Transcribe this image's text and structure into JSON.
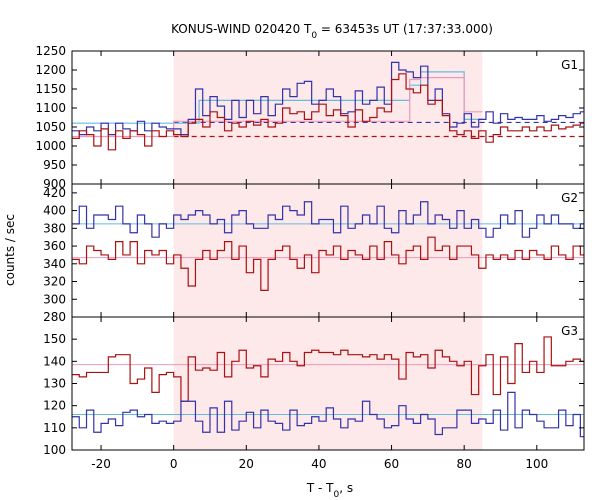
{
  "chart_data": {
    "type": "line",
    "title": "KONUS-WIND 020420 T",
    "title_sub": "0",
    "title_rest": " = 63453s UT (17:37:33.000)",
    "xlabel": "T - T",
    "xlabel_sub": "0",
    "xlabel_rest": ", s",
    "ylabel": "counts / sec",
    "xlim": [
      -28,
      113
    ],
    "xticks": [
      -20,
      0,
      20,
      40,
      60,
      80,
      100
    ],
    "xtick_labels": [
      "-20",
      "0",
      "20",
      "40",
      "60",
      "80",
      "100"
    ],
    "highlight_interval": [
      0,
      85
    ],
    "highlight_color": "#fde8ea",
    "panels": [
      {
        "name": "G1",
        "ylim": [
          900,
          1250
        ],
        "yticks": [
          900,
          950,
          1000,
          1050,
          1100,
          1150,
          1200,
          1250
        ],
        "ytick_labels": [
          "900",
          "950",
          "1000",
          "1050",
          "1100",
          "1150",
          "1200",
          "1250"
        ],
        "bin_start": -28,
        "bin_width": 2,
        "series": [
          {
            "color": "#3333aa",
            "values": [
              1040,
              1030,
              1050,
              1040,
              1060,
              1030,
              1060,
              1045,
              1040,
              1065,
              1040,
              1060,
              1050,
              1045,
              1045,
              1030,
              1070,
              1150,
              1080,
              1130,
              1105,
              1070,
              1120,
              1075,
              1120,
              1085,
              1130,
              1080,
              1110,
              1150,
              1130,
              1165,
              1170,
              1110,
              1120,
              1150,
              1130,
              1085,
              1090,
              1145,
              1110,
              1120,
              1155,
              1110,
              1220,
              1200,
              1195,
              1180,
              1210,
              1120,
              1150,
              1085,
              1050,
              1060,
              1085,
              1050,
              1070,
              1090,
              1060,
              1085,
              1070,
              1075,
              1070,
              1070,
              1080,
              1065,
              1070,
              1080,
              1075,
              1085,
              1090
            ]
          },
          {
            "color": "#aa1111",
            "values": [
              1020,
              1040,
              1030,
              1000,
              1045,
              990,
              1040,
              1020,
              1040,
              1030,
              1000,
              1040,
              1025,
              1040,
              1030,
              1025,
              1060,
              1070,
              1050,
              1090,
              1075,
              1040,
              1060,
              1050,
              1065,
              1055,
              1070,
              1050,
              1060,
              1100,
              1085,
              1090,
              1070,
              1090,
              1110,
              1080,
              1095,
              1080,
              1050,
              1095,
              1065,
              1075,
              1100,
              1090,
              1175,
              1190,
              1150,
              1140,
              1160,
              1110,
              1120,
              1080,
              1040,
              1030,
              1040,
              1020,
              1040,
              1010,
              1030,
              1050,
              1040,
              1040,
              1050,
              1040,
              1050,
              1040,
              1055,
              1045,
              1050,
              1055,
              1060
            ]
          }
        ],
        "steps": [
          {
            "color": "#66bbdd",
            "edges": [
              -28,
              7,
              65,
              68,
              80,
              85
            ],
            "values": [
              1060,
              1120,
              1160,
              1195,
              1070
            ]
          },
          {
            "color": "#ee99bb",
            "edges": [
              -28,
              0,
              65,
              68,
              80,
              85
            ],
            "values": [
              1025,
              1065,
              1175,
              1180,
              1090
            ]
          }
        ],
        "dashed": [
          {
            "color": "#3333aa",
            "y": 1062
          },
          {
            "color": "#aa1111",
            "y": 1025
          }
        ]
      },
      {
        "name": "G2",
        "ylim": [
          280,
          430
        ],
        "yticks": [
          280,
          300,
          320,
          340,
          360,
          380,
          400,
          420
        ],
        "ytick_labels": [
          "280",
          "300",
          "320",
          "340",
          "360",
          "380",
          "400",
          "420"
        ],
        "bin_start": -28,
        "bin_width": 2,
        "series": [
          {
            "color": "#3333aa",
            "values": [
              385,
              405,
              380,
              395,
              395,
              390,
              405,
              385,
              375,
              395,
              385,
              370,
              385,
              380,
              395,
              390,
              395,
              400,
              395,
              385,
              390,
              375,
              395,
              400,
              385,
              380,
              380,
              395,
              390,
              405,
              400,
              395,
              410,
              385,
              390,
              390,
              375,
              405,
              380,
              385,
              395,
              385,
              405,
              380,
              375,
              400,
              385,
              395,
              410,
              385,
              395,
              390,
              380,
              400,
              380,
              390,
              380,
              370,
              380,
              395,
              385,
              400,
              370,
              380,
              395,
              385,
              395,
              385,
              385,
              380,
              385
            ]
          },
          {
            "color": "#aa1111",
            "values": [
              345,
              340,
              360,
              355,
              350,
              345,
              365,
              350,
              365,
              340,
              355,
              350,
              355,
              340,
              350,
              335,
              315,
              345,
              355,
              345,
              355,
              365,
              345,
              360,
              330,
              345,
              310,
              345,
              355,
              360,
              345,
              335,
              350,
              330,
              355,
              350,
              360,
              345,
              355,
              350,
              345,
              360,
              345,
              365,
              350,
              340,
              355,
              360,
              345,
              370,
              355,
              360,
              345,
              360,
              360,
              350,
              335,
              350,
              345,
              350,
              345,
              355,
              345,
              355,
              350,
              345,
              360,
              350,
              345,
              360,
              350
            ]
          }
        ],
        "hlines": [
          {
            "color": "#66bbdd",
            "y": 385
          },
          {
            "color": "#ee99bb",
            "y": 347
          }
        ]
      },
      {
        "name": "G3",
        "ylim": [
          100,
          160
        ],
        "yticks": [
          100,
          110,
          120,
          130,
          140,
          150
        ],
        "ytick_labels": [
          "100",
          "110",
          "120",
          "130",
          "140",
          "150"
        ],
        "bin_start": -28,
        "bin_width": 2,
        "series": [
          {
            "color": "#aa1111",
            "values": [
              134,
              133,
              135,
              135,
              135,
              142,
              143,
              143,
              130,
              132,
              137,
              126,
              134,
              135,
              133,
              122,
              142,
              136,
              137,
              136,
              144,
              133,
              140,
              145,
              137,
              138,
              133,
              141,
              140,
              144,
              140,
              138,
              144,
              145,
              144,
              144,
              143,
              145,
              143,
              143,
              142,
              143,
              141,
              143,
              141,
              132,
              144,
              142,
              143,
              137,
              145,
              142,
              140,
              138,
              140,
              125,
              138,
              143,
              125,
              142,
              130,
              148,
              135,
              140,
              135,
              151,
              138,
              138,
              140,
              141,
              140
            ]
          },
          {
            "color": "#3333aa",
            "values": [
              115,
              110,
              118,
              108,
              112,
              114,
              111,
              117,
              118,
              115,
              116,
              112,
              113,
              112,
              113,
              122,
              122,
              113,
              108,
              119,
              108,
              122,
              109,
              113,
              117,
              110,
              118,
              113,
              112,
              109,
              118,
              111,
              112,
              115,
              113,
              119,
              114,
              110,
              114,
              113,
              122,
              116,
              114,
              110,
              111,
              120,
              114,
              112,
              116,
              114,
              107,
              110,
              110,
              118,
              118,
              112,
              114,
              112,
              118,
              109,
              126,
              110,
              118,
              116,
              113,
              110,
              110,
              118,
              111,
              116,
              106
            ]
          }
        ],
        "hlines": [
          {
            "color": "#66bbdd",
            "y": 116
          },
          {
            "color": "#ee99bb",
            "y": 138.5
          }
        ]
      }
    ]
  }
}
